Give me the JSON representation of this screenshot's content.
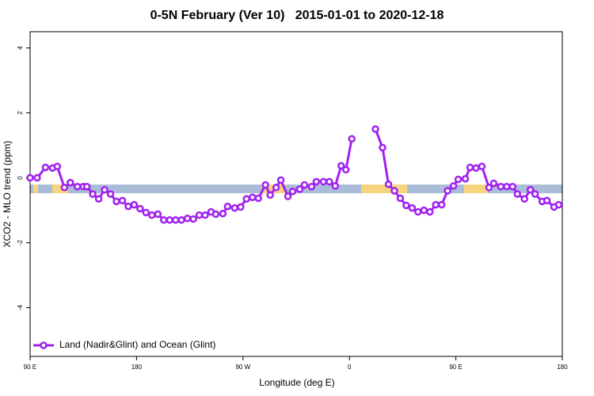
{
  "chart_data": {
    "type": "line",
    "title": "0-5N February (Ver 10)   2015-01-01 to 2020-12-18",
    "xlabel": "Longitude (deg E)",
    "ylabel": "XCO2 - MLO trend (ppm)",
    "xlim": [
      90,
      540
    ],
    "xticks": [
      {
        "value": 90,
        "label": "90 E"
      },
      180,
      {
        "value": 270,
        "label": "90 W"
      },
      {
        "value": 360,
        "label": "0"
      },
      {
        "value": 450,
        "label": "90 E"
      },
      {
        "value": 540,
        "label": "180"
      }
    ],
    "ylim": [
      -5.5,
      4.5
    ],
    "yticks": [
      -4,
      -2,
      0,
      2,
      4
    ],
    "grid": false,
    "legend": "bottom-left",
    "x": [
      90,
      96,
      103,
      109,
      113,
      119,
      124,
      130,
      135,
      138,
      143,
      148,
      153,
      158,
      163,
      168,
      173,
      178,
      183,
      188,
      193,
      198,
      203,
      208,
      213,
      218,
      223,
      228,
      233,
      238,
      243,
      247,
      253,
      257,
      263,
      268,
      273,
      278,
      283,
      289,
      293,
      298,
      302,
      308,
      312,
      318,
      322,
      328,
      332,
      338,
      343,
      348,
      353,
      357,
      362,
      370,
      382,
      388,
      393,
      398,
      403,
      408,
      413,
      418,
      423,
      428,
      433,
      438,
      443,
      448,
      452,
      458,
      462,
      467,
      472,
      478,
      482,
      488,
      493,
      498,
      502,
      508,
      513,
      517,
      523,
      527,
      533,
      537
    ],
    "series": [
      {
        "name": "Land (Nadir&Glint) and Ocean (Glint)",
        "color": "#a020f0",
        "values": [
          0,
          0,
          0.32,
          0.3,
          0.35,
          -0.3,
          -0.15,
          -0.27,
          -0.27,
          -0.27,
          -0.5,
          -0.65,
          -0.37,
          -0.5,
          -0.73,
          -0.7,
          -0.88,
          -0.83,
          -0.95,
          -1.07,
          -1.15,
          -1.12,
          -1.3,
          -1.3,
          -1.3,
          -1.3,
          -1.25,
          -1.27,
          -1.15,
          -1.15,
          -1.05,
          -1.12,
          -1.1,
          -0.88,
          -0.93,
          -0.9,
          -0.65,
          -0.6,
          -0.63,
          -0.22,
          -0.53,
          -0.3,
          -0.07,
          -0.57,
          -0.42,
          -0.35,
          -0.22,
          -0.27,
          -0.12,
          -0.12,
          -0.12,
          -0.25,
          0.37,
          0.25,
          1.2,
          null,
          1.5,
          0.93,
          -0.2,
          -0.4,
          -0.63,
          -0.85,
          -0.93,
          -1.05,
          -1.0,
          -1.05,
          -0.83,
          -0.83,
          -0.4,
          -0.25,
          -0.05,
          -0.03,
          0.32,
          0.3,
          0.35,
          -0.3,
          -0.17,
          -0.27,
          -0.27,
          -0.27,
          -0.5,
          -0.65,
          -0.37,
          -0.5,
          -0.73,
          -0.7,
          -0.9,
          -0.83
        ]
      }
    ]
  }
}
